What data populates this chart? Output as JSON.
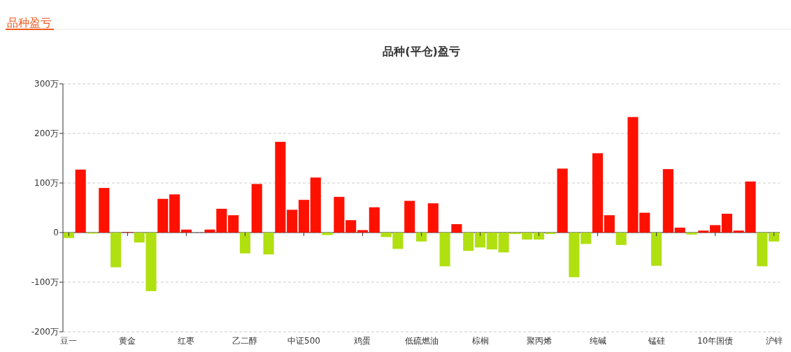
{
  "chart_data": {
    "type": "bar",
    "title": "品种盈亏",
    "subtitle": "品种(平仓)盈亏",
    "categories": [
      "豆一",
      null,
      null,
      null,
      null,
      "黄金",
      null,
      null,
      null,
      null,
      "红枣",
      null,
      null,
      null,
      null,
      "乙二醇",
      null,
      null,
      null,
      null,
      "中证500",
      null,
      null,
      null,
      null,
      "鸡蛋",
      null,
      null,
      null,
      null,
      "低硫燃油",
      null,
      null,
      null,
      null,
      "棕榈",
      null,
      null,
      null,
      null,
      "聚丙烯",
      null,
      null,
      null,
      null,
      "纯碱",
      null,
      null,
      null,
      null,
      "锰硅",
      null,
      null,
      null,
      null,
      "10年国债",
      null,
      null,
      null,
      null,
      "沪锌"
    ],
    "values": [
      -11,
      127,
      -2,
      90,
      -70,
      1,
      -20,
      -118,
      68,
      77,
      6,
      0,
      6,
      48,
      35,
      -42,
      98,
      -44,
      183,
      46,
      66,
      111,
      -5,
      72,
      25,
      5,
      51,
      -9,
      -33,
      64,
      -18,
      59,
      -68,
      17,
      -37,
      -30,
      -34,
      -40,
      -3,
      -14,
      -14,
      -3,
      129,
      -90,
      -23,
      160,
      35,
      -25,
      233,
      40,
      -67,
      128,
      10,
      -4,
      4,
      15,
      38,
      4,
      103,
      -68,
      -18
    ],
    "colors": [
      "#b0e010",
      "#ff1100",
      "#b0e010",
      "#ff1100",
      "#b0e010",
      "#ff1100",
      "#b0e010",
      "#b0e010",
      "#ff1100",
      "#ff1100",
      "#ff1100",
      "#ff1100",
      "#ff1100",
      "#ff1100",
      "#ff1100",
      "#b0e010",
      "#ff1100",
      "#b0e010",
      "#ff1100",
      "#ff1100",
      "#ff1100",
      "#ff1100",
      "#b0e010",
      "#ff1100",
      "#ff1100",
      "#ff1100",
      "#ff1100",
      "#b0e010",
      "#b0e010",
      "#ff1100",
      "#b0e010",
      "#ff1100",
      "#b0e010",
      "#ff1100",
      "#b0e010",
      "#b0e010",
      "#b0e010",
      "#b0e010",
      "#b0e010",
      "#b0e010",
      "#b0e010",
      "#b0e010",
      "#ff1100",
      "#b0e010",
      "#b0e010",
      "#ff1100",
      "#ff1100",
      "#b0e010",
      "#ff1100",
      "#ff1100",
      "#b0e010",
      "#ff1100",
      "#ff1100",
      "#b0e010",
      "#ff1100",
      "#ff1100",
      "#ff1100",
      "#ff1100",
      "#ff1100",
      "#b0e010",
      "#b0e010"
    ],
    "ylim": [
      -200,
      300
    ],
    "yticks": [
      {
        "value": -200,
        "label": "-200万"
      },
      {
        "value": -100,
        "label": "-100万"
      },
      0,
      {
        "value": 100,
        "label": "100万"
      },
      {
        "value": 200,
        "label": "200万"
      },
      {
        "value": 300,
        "label": "300万"
      }
    ],
    "grid": "y"
  }
}
